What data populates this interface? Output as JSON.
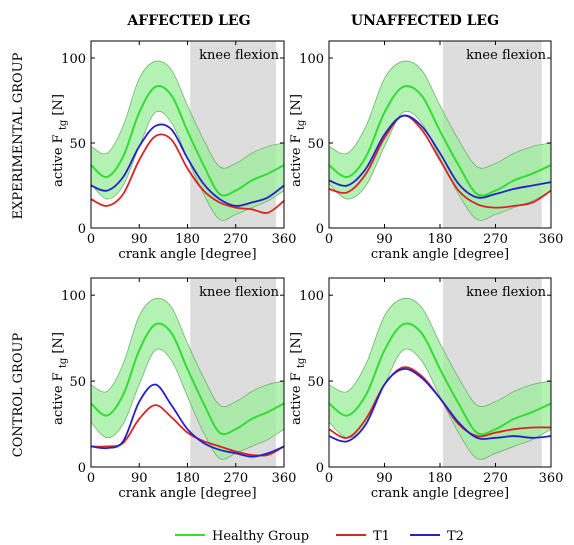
{
  "figure": {
    "column_titles": [
      "AFFECTED LEG",
      "UNAFFECTED LEG"
    ],
    "row_titles": [
      "EXPERIMENTAL GROUP",
      "CONTROL GROUP"
    ]
  },
  "legend": [
    {
      "label": "Healthy Group",
      "color": "#33dd33"
    },
    {
      "label": "T1",
      "color": "#dd2222"
    },
    {
      "label": "T2",
      "color": "#2222cc"
    }
  ],
  "colors": {
    "healthy": "#33dd33",
    "healthy_band": "#99ee99",
    "t1": "#dd2222",
    "t2": "#2222cc",
    "knee_region": "#dddddd"
  },
  "chart_data": [
    {
      "type": "line",
      "panel": "experimental-affected",
      "xlabel": "crank angle [degree]",
      "ylabel": "active F",
      "ylabel_subscript": "tg",
      "ylabel_unit": "[N]",
      "xlim": [
        0,
        360
      ],
      "ylim": [
        0,
        110
      ],
      "xticks": [
        0,
        90,
        180,
        270,
        360
      ],
      "yticks": [
        0,
        50,
        100
      ],
      "annotation": "knee flexion",
      "shaded_region": [
        185,
        345
      ],
      "x": [
        0,
        30,
        60,
        90,
        120,
        150,
        180,
        210,
        240,
        270,
        300,
        330,
        360
      ],
      "series": [
        {
          "name": "Healthy Group",
          "values": [
            37,
            30,
            42,
            68,
            83,
            78,
            57,
            37,
            20,
            22,
            28,
            32,
            37
          ],
          "upper": [
            48,
            44,
            60,
            88,
            98,
            93,
            72,
            52,
            36,
            38,
            44,
            48,
            50
          ],
          "lower": [
            26,
            17,
            25,
            48,
            68,
            62,
            41,
            20,
            5,
            8,
            12,
            16,
            22
          ]
        },
        {
          "name": "T1",
          "values": [
            17,
            13,
            20,
            40,
            54,
            52,
            35,
            22,
            15,
            12,
            11,
            9,
            16
          ]
        },
        {
          "name": "T2",
          "values": [
            25,
            22,
            30,
            48,
            60,
            58,
            41,
            26,
            17,
            13,
            15,
            18,
            25
          ]
        }
      ]
    },
    {
      "type": "line",
      "panel": "experimental-unaffected",
      "xlabel": "crank angle [degree]",
      "ylabel": "active F",
      "ylabel_subscript": "tg",
      "ylabel_unit": "[N]",
      "xlim": [
        0,
        360
      ],
      "ylim": [
        0,
        110
      ],
      "xticks": [
        0,
        90,
        180,
        270,
        360
      ],
      "yticks": [
        0,
        50,
        100
      ],
      "annotation": "knee flexion",
      "shaded_region": [
        185,
        345
      ],
      "x": [
        0,
        30,
        60,
        90,
        120,
        150,
        180,
        210,
        240,
        270,
        300,
        330,
        360
      ],
      "series": [
        {
          "name": "Healthy Group",
          "values": [
            37,
            30,
            42,
            68,
            83,
            78,
            57,
            37,
            20,
            22,
            28,
            32,
            37
          ],
          "upper": [
            48,
            44,
            60,
            88,
            98,
            93,
            72,
            52,
            36,
            38,
            44,
            48,
            50
          ],
          "lower": [
            26,
            17,
            25,
            48,
            68,
            62,
            41,
            20,
            5,
            8,
            12,
            16,
            22
          ]
        },
        {
          "name": "T1",
          "values": [
            23,
            21,
            32,
            53,
            66,
            58,
            40,
            22,
            14,
            12,
            13,
            15,
            22
          ]
        },
        {
          "name": "T2",
          "values": [
            28,
            25,
            35,
            55,
            66,
            60,
            44,
            26,
            18,
            20,
            23,
            25,
            27
          ]
        }
      ]
    },
    {
      "type": "line",
      "panel": "control-affected",
      "xlabel": "crank angle [degree]",
      "ylabel": "active F",
      "ylabel_subscript": "tg",
      "ylabel_unit": "[N]",
      "xlim": [
        0,
        360
      ],
      "ylim": [
        0,
        110
      ],
      "xticks": [
        0,
        90,
        180,
        270,
        360
      ],
      "yticks": [
        0,
        50,
        100
      ],
      "annotation": "knee flexion",
      "shaded_region": [
        185,
        345
      ],
      "x": [
        0,
        30,
        60,
        90,
        120,
        150,
        180,
        210,
        240,
        270,
        300,
        330,
        360
      ],
      "series": [
        {
          "name": "Healthy Group",
          "values": [
            37,
            30,
            42,
            68,
            83,
            78,
            57,
            37,
            20,
            22,
            28,
            32,
            37
          ],
          "upper": [
            48,
            44,
            60,
            88,
            98,
            93,
            72,
            52,
            36,
            38,
            44,
            48,
            50
          ],
          "lower": [
            26,
            17,
            25,
            48,
            68,
            62,
            41,
            20,
            5,
            8,
            12,
            16,
            22
          ]
        },
        {
          "name": "T1",
          "values": [
            12,
            12,
            14,
            28,
            36,
            29,
            20,
            15,
            12,
            9,
            7,
            7,
            12
          ]
        },
        {
          "name": "T2",
          "values": [
            12,
            11,
            15,
            38,
            48,
            36,
            22,
            14,
            10,
            8,
            6,
            8,
            12
          ]
        }
      ]
    },
    {
      "type": "line",
      "panel": "control-unaffected",
      "xlabel": "crank angle [degree]",
      "ylabel": "active F",
      "ylabel_subscript": "tg",
      "ylabel_unit": "[N]",
      "xlim": [
        0,
        360
      ],
      "ylim": [
        0,
        110
      ],
      "xticks": [
        0,
        90,
        180,
        270,
        360
      ],
      "yticks": [
        0,
        50,
        100
      ],
      "annotation": "knee flexion",
      "shaded_region": [
        185,
        345
      ],
      "x": [
        0,
        30,
        60,
        90,
        120,
        150,
        180,
        210,
        240,
        270,
        300,
        330,
        360
      ],
      "series": [
        {
          "name": "Healthy Group",
          "values": [
            37,
            30,
            42,
            68,
            83,
            78,
            57,
            37,
            20,
            22,
            28,
            32,
            37
          ],
          "upper": [
            48,
            44,
            60,
            88,
            98,
            93,
            72,
            52,
            36,
            38,
            44,
            48,
            50
          ],
          "lower": [
            26,
            17,
            25,
            48,
            68,
            62,
            41,
            20,
            5,
            8,
            12,
            16,
            22
          ]
        },
        {
          "name": "T1",
          "values": [
            22,
            17,
            28,
            48,
            58,
            53,
            40,
            25,
            18,
            20,
            22,
            23,
            23
          ]
        },
        {
          "name": "T2",
          "values": [
            18,
            15,
            25,
            48,
            57,
            52,
            40,
            26,
            17,
            17,
            18,
            17,
            18
          ]
        }
      ]
    }
  ]
}
